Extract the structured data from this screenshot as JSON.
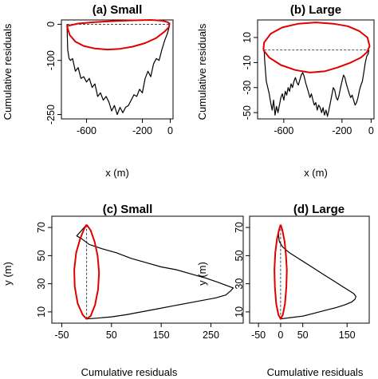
{
  "chart_data": [
    {
      "type": "line",
      "title": "(a) Small",
      "xlabel": "x (m)",
      "ylabel": "Cumulative residuals",
      "xlim": [
        -780,
        20
      ],
      "ylim": [
        -262,
        12
      ],
      "xticks": [
        -600,
        -200,
        0
      ],
      "yticks": [
        0,
        -100,
        -250
      ],
      "reference_line": {
        "y": 0,
        "x_range": [
          -740,
          -5
        ],
        "style": "dashed"
      },
      "series": [
        {
          "kind": "residual-path",
          "color": "#000000",
          "points": [
            [
              -740,
              0
            ],
            [
              -735,
              -70
            ],
            [
              -725,
              -95
            ],
            [
              -715,
              -100
            ],
            [
              -700,
              -95
            ],
            [
              -680,
              -130
            ],
            [
              -660,
              -120
            ],
            [
              -640,
              -150
            ],
            [
              -620,
              -145
            ],
            [
              -600,
              -160
            ],
            [
              -580,
              -150
            ],
            [
              -560,
              -175
            ],
            [
              -540,
              -165
            ],
            [
              -520,
              -200
            ],
            [
              -500,
              -190
            ],
            [
              -480,
              -210
            ],
            [
              -460,
              -200
            ],
            [
              -440,
              -215
            ],
            [
              -420,
              -240
            ],
            [
              -400,
              -225
            ],
            [
              -380,
              -250
            ],
            [
              -360,
              -230
            ],
            [
              -340,
              -245
            ],
            [
              -320,
              -230
            ],
            [
              -300,
              -225
            ],
            [
              -280,
              -210
            ],
            [
              -260,
              -195
            ],
            [
              -240,
              -200
            ],
            [
              -220,
              -180
            ],
            [
              -200,
              -190
            ],
            [
              -180,
              -150
            ],
            [
              -160,
              -130
            ],
            [
              -140,
              -145
            ],
            [
              -120,
              -110
            ],
            [
              -100,
              -95
            ],
            [
              -80,
              -100
            ],
            [
              -60,
              -70
            ],
            [
              -40,
              -45
            ],
            [
              -20,
              -25
            ],
            [
              -10,
              -10
            ],
            [
              -5,
              0
            ]
          ]
        },
        {
          "kind": "ellipse",
          "color": "#e00000",
          "points": [
            [
              -740,
              -5
            ],
            [
              -720,
              -30
            ],
            [
              -680,
              -48
            ],
            [
              -620,
              -60
            ],
            [
              -540,
              -67
            ],
            [
              -450,
              -70
            ],
            [
              -360,
              -68
            ],
            [
              -270,
              -62
            ],
            [
              -180,
              -52
            ],
            [
              -100,
              -38
            ],
            [
              -40,
              -20
            ],
            [
              -10,
              -8
            ],
            [
              -5,
              2
            ],
            [
              -20,
              6
            ],
            [
              -60,
              10
            ],
            [
              -140,
              12
            ],
            [
              -260,
              11
            ],
            [
              -400,
              9
            ],
            [
              -540,
              6
            ],
            [
              -660,
              2
            ],
            [
              -740,
              -5
            ]
          ]
        }
      ]
    },
    {
      "type": "line",
      "title": "(b) Large",
      "xlabel": "x (m)",
      "ylabel": "Cumulative residuals",
      "xlim": [
        -780,
        20
      ],
      "ylim": [
        -55,
        24
      ],
      "xticks": [
        -600,
        -200,
        0
      ],
      "yticks": [
        10,
        -10,
        -30,
        -50
      ],
      "reference_line": {
        "y": 0,
        "x_range": [
          -735,
          -15
        ],
        "style": "dashed"
      },
      "series": [
        {
          "kind": "residual-path",
          "color": "#000000",
          "points": [
            [
              -735,
              0
            ],
            [
              -730,
              -10
            ],
            [
              -720,
              -25
            ],
            [
              -710,
              -30
            ],
            [
              -700,
              -35
            ],
            [
              -690,
              -42
            ],
            [
              -680,
              -48
            ],
            [
              -670,
              -40
            ],
            [
              -660,
              -52
            ],
            [
              -650,
              -45
            ],
            [
              -640,
              -50
            ],
            [
              -630,
              -44
            ],
            [
              -620,
              -38
            ],
            [
              -610,
              -35
            ],
            [
              -600,
              -40
            ],
            [
              -590,
              -33
            ],
            [
              -580,
              -36
            ],
            [
              -570,
              -30
            ],
            [
              -560,
              -33
            ],
            [
              -550,
              -27
            ],
            [
              -540,
              -30
            ],
            [
              -530,
              -25
            ],
            [
              -520,
              -22
            ],
            [
              -510,
              -26
            ],
            [
              -500,
              -28
            ],
            [
              -490,
              -24
            ],
            [
              -480,
              -20
            ],
            [
              -470,
              -18
            ],
            [
              -460,
              -21
            ],
            [
              -450,
              -26
            ],
            [
              -440,
              -30
            ],
            [
              -430,
              -34
            ],
            [
              -420,
              -38
            ],
            [
              -410,
              -35
            ],
            [
              -400,
              -40
            ],
            [
              -390,
              -44
            ],
            [
              -380,
              -42
            ],
            [
              -370,
              -48
            ],
            [
              -360,
              -44
            ],
            [
              -350,
              -46
            ],
            [
              -340,
              -50
            ],
            [
              -330,
              -46
            ],
            [
              -320,
              -52
            ],
            [
              -310,
              -48
            ],
            [
              -300,
              -53
            ],
            [
              -290,
              -48
            ],
            [
              -280,
              -42
            ],
            [
              -270,
              -36
            ],
            [
              -260,
              -30
            ],
            [
              -250,
              -32
            ],
            [
              -240,
              -38
            ],
            [
              -230,
              -40
            ],
            [
              -220,
              -36
            ],
            [
              -210,
              -30
            ],
            [
              -200,
              -25
            ],
            [
              -190,
              -20
            ],
            [
              -180,
              -22
            ],
            [
              -170,
              -27
            ],
            [
              -160,
              -31
            ],
            [
              -150,
              -35
            ],
            [
              -140,
              -38
            ],
            [
              -130,
              -36
            ],
            [
              -120,
              -40
            ],
            [
              -110,
              -44
            ],
            [
              -100,
              -42
            ],
            [
              -90,
              -38
            ],
            [
              -80,
              -32
            ],
            [
              -70,
              -28
            ],
            [
              -60,
              -25
            ],
            [
              -50,
              -18
            ],
            [
              -40,
              -10
            ],
            [
              -30,
              -5
            ],
            [
              -20,
              -3
            ],
            [
              -15,
              0
            ]
          ]
        },
        {
          "kind": "ellipse",
          "color": "#e00000",
          "points": [
            [
              -740,
              0
            ],
            [
              -700,
              -6
            ],
            [
              -620,
              -12
            ],
            [
              -520,
              -16
            ],
            [
              -420,
              -18
            ],
            [
              -320,
              -17
            ],
            [
              -230,
              -14
            ],
            [
              -140,
              -10
            ],
            [
              -70,
              -6
            ],
            [
              -30,
              -2
            ],
            [
              -10,
              3
            ],
            [
              -25,
              10
            ],
            [
              -80,
              15
            ],
            [
              -160,
              19
            ],
            [
              -260,
              21
            ],
            [
              -380,
              22
            ],
            [
              -500,
              21
            ],
            [
              -610,
              18
            ],
            [
              -690,
              13
            ],
            [
              -735,
              6
            ],
            [
              -740,
              0
            ]
          ]
        }
      ]
    },
    {
      "type": "line",
      "title": "(c) Small",
      "xlabel": "Cumulative residuals",
      "ylabel": "y (m)",
      "xlim": [
        -70,
        315
      ],
      "ylim": [
        2,
        78
      ],
      "xticks": [
        -50,
        50,
        150,
        250
      ],
      "yticks": [
        10,
        30,
        50,
        70
      ],
      "reference_line": {
        "x": 0,
        "y_range": [
          5,
          72
        ],
        "style": "dashed"
      },
      "series": [
        {
          "kind": "residual-path",
          "color": "#000000",
          "points": [
            [
              0,
              72
            ],
            [
              -10,
              68
            ],
            [
              -20,
              64
            ],
            [
              -10,
              62
            ],
            [
              5,
              58
            ],
            [
              30,
              55
            ],
            [
              60,
              52
            ],
            [
              90,
              48
            ],
            [
              120,
              45
            ],
            [
              150,
              42
            ],
            [
              180,
              40
            ],
            [
              210,
              37
            ],
            [
              240,
              34
            ],
            [
              265,
              31
            ],
            [
              280,
              29
            ],
            [
              295,
              27
            ],
            [
              290,
              25
            ],
            [
              280,
              22
            ],
            [
              260,
              20
            ],
            [
              230,
              18
            ],
            [
              200,
              16
            ],
            [
              170,
              14
            ],
            [
              140,
              12
            ],
            [
              110,
              10
            ],
            [
              80,
              8
            ],
            [
              50,
              6.5
            ],
            [
              20,
              5.5
            ],
            [
              0,
              5
            ]
          ]
        },
        {
          "kind": "ellipse",
          "color": "#e00000",
          "points": [
            [
              0,
              72
            ],
            [
              8,
              68
            ],
            [
              16,
              60
            ],
            [
              22,
              50
            ],
            [
              25,
              38
            ],
            [
              23,
              26
            ],
            [
              17,
              15
            ],
            [
              8,
              7
            ],
            [
              0,
              5
            ],
            [
              -8,
              8
            ],
            [
              -18,
              16
            ],
            [
              -24,
              28
            ],
            [
              -25,
              40
            ],
            [
              -21,
              52
            ],
            [
              -13,
              62
            ],
            [
              -5,
              69
            ],
            [
              0,
              72
            ]
          ]
        }
      ]
    },
    {
      "type": "line",
      "title": "(d) Large",
      "xlabel": "Cumulative residuals",
      "ylabel": "y (m)",
      "xlim": [
        -70,
        200
      ],
      "ylim": [
        2,
        78
      ],
      "xticks": [
        -50,
        0,
        50,
        150
      ],
      "yticks": [
        10,
        30,
        50,
        70
      ],
      "reference_line": {
        "x": 0,
        "y_range": [
          5,
          72
        ],
        "style": "dashed"
      },
      "series": [
        {
          "kind": "residual-path",
          "color": "#000000",
          "points": [
            [
              0,
              72
            ],
            [
              -5,
              66
            ],
            [
              -3,
              60
            ],
            [
              5,
              56
            ],
            [
              20,
              52
            ],
            [
              40,
              48
            ],
            [
              60,
              44
            ],
            [
              80,
              40
            ],
            [
              100,
              36
            ],
            [
              120,
              32
            ],
            [
              140,
              28
            ],
            [
              155,
              25
            ],
            [
              165,
              23
            ],
            [
              170,
              21
            ],
            [
              168,
              19
            ],
            [
              160,
              17
            ],
            [
              145,
              15
            ],
            [
              125,
              13
            ],
            [
              100,
              11
            ],
            [
              75,
              9
            ],
            [
              50,
              7
            ],
            [
              25,
              6
            ],
            [
              0,
              5
            ]
          ]
        },
        {
          "kind": "ellipse",
          "color": "#e00000",
          "points": [
            [
              0,
              72
            ],
            [
              4,
              68
            ],
            [
              9,
              60
            ],
            [
              12,
              50
            ],
            [
              14,
              40
            ],
            [
              13,
              28
            ],
            [
              10,
              16
            ],
            [
              5,
              8
            ],
            [
              0,
              5
            ],
            [
              -5,
              8
            ],
            [
              -10,
              16
            ],
            [
              -13,
              28
            ],
            [
              -14,
              40
            ],
            [
              -12,
              52
            ],
            [
              -8,
              62
            ],
            [
              -3,
              69
            ],
            [
              0,
              72
            ]
          ]
        }
      ]
    }
  ]
}
